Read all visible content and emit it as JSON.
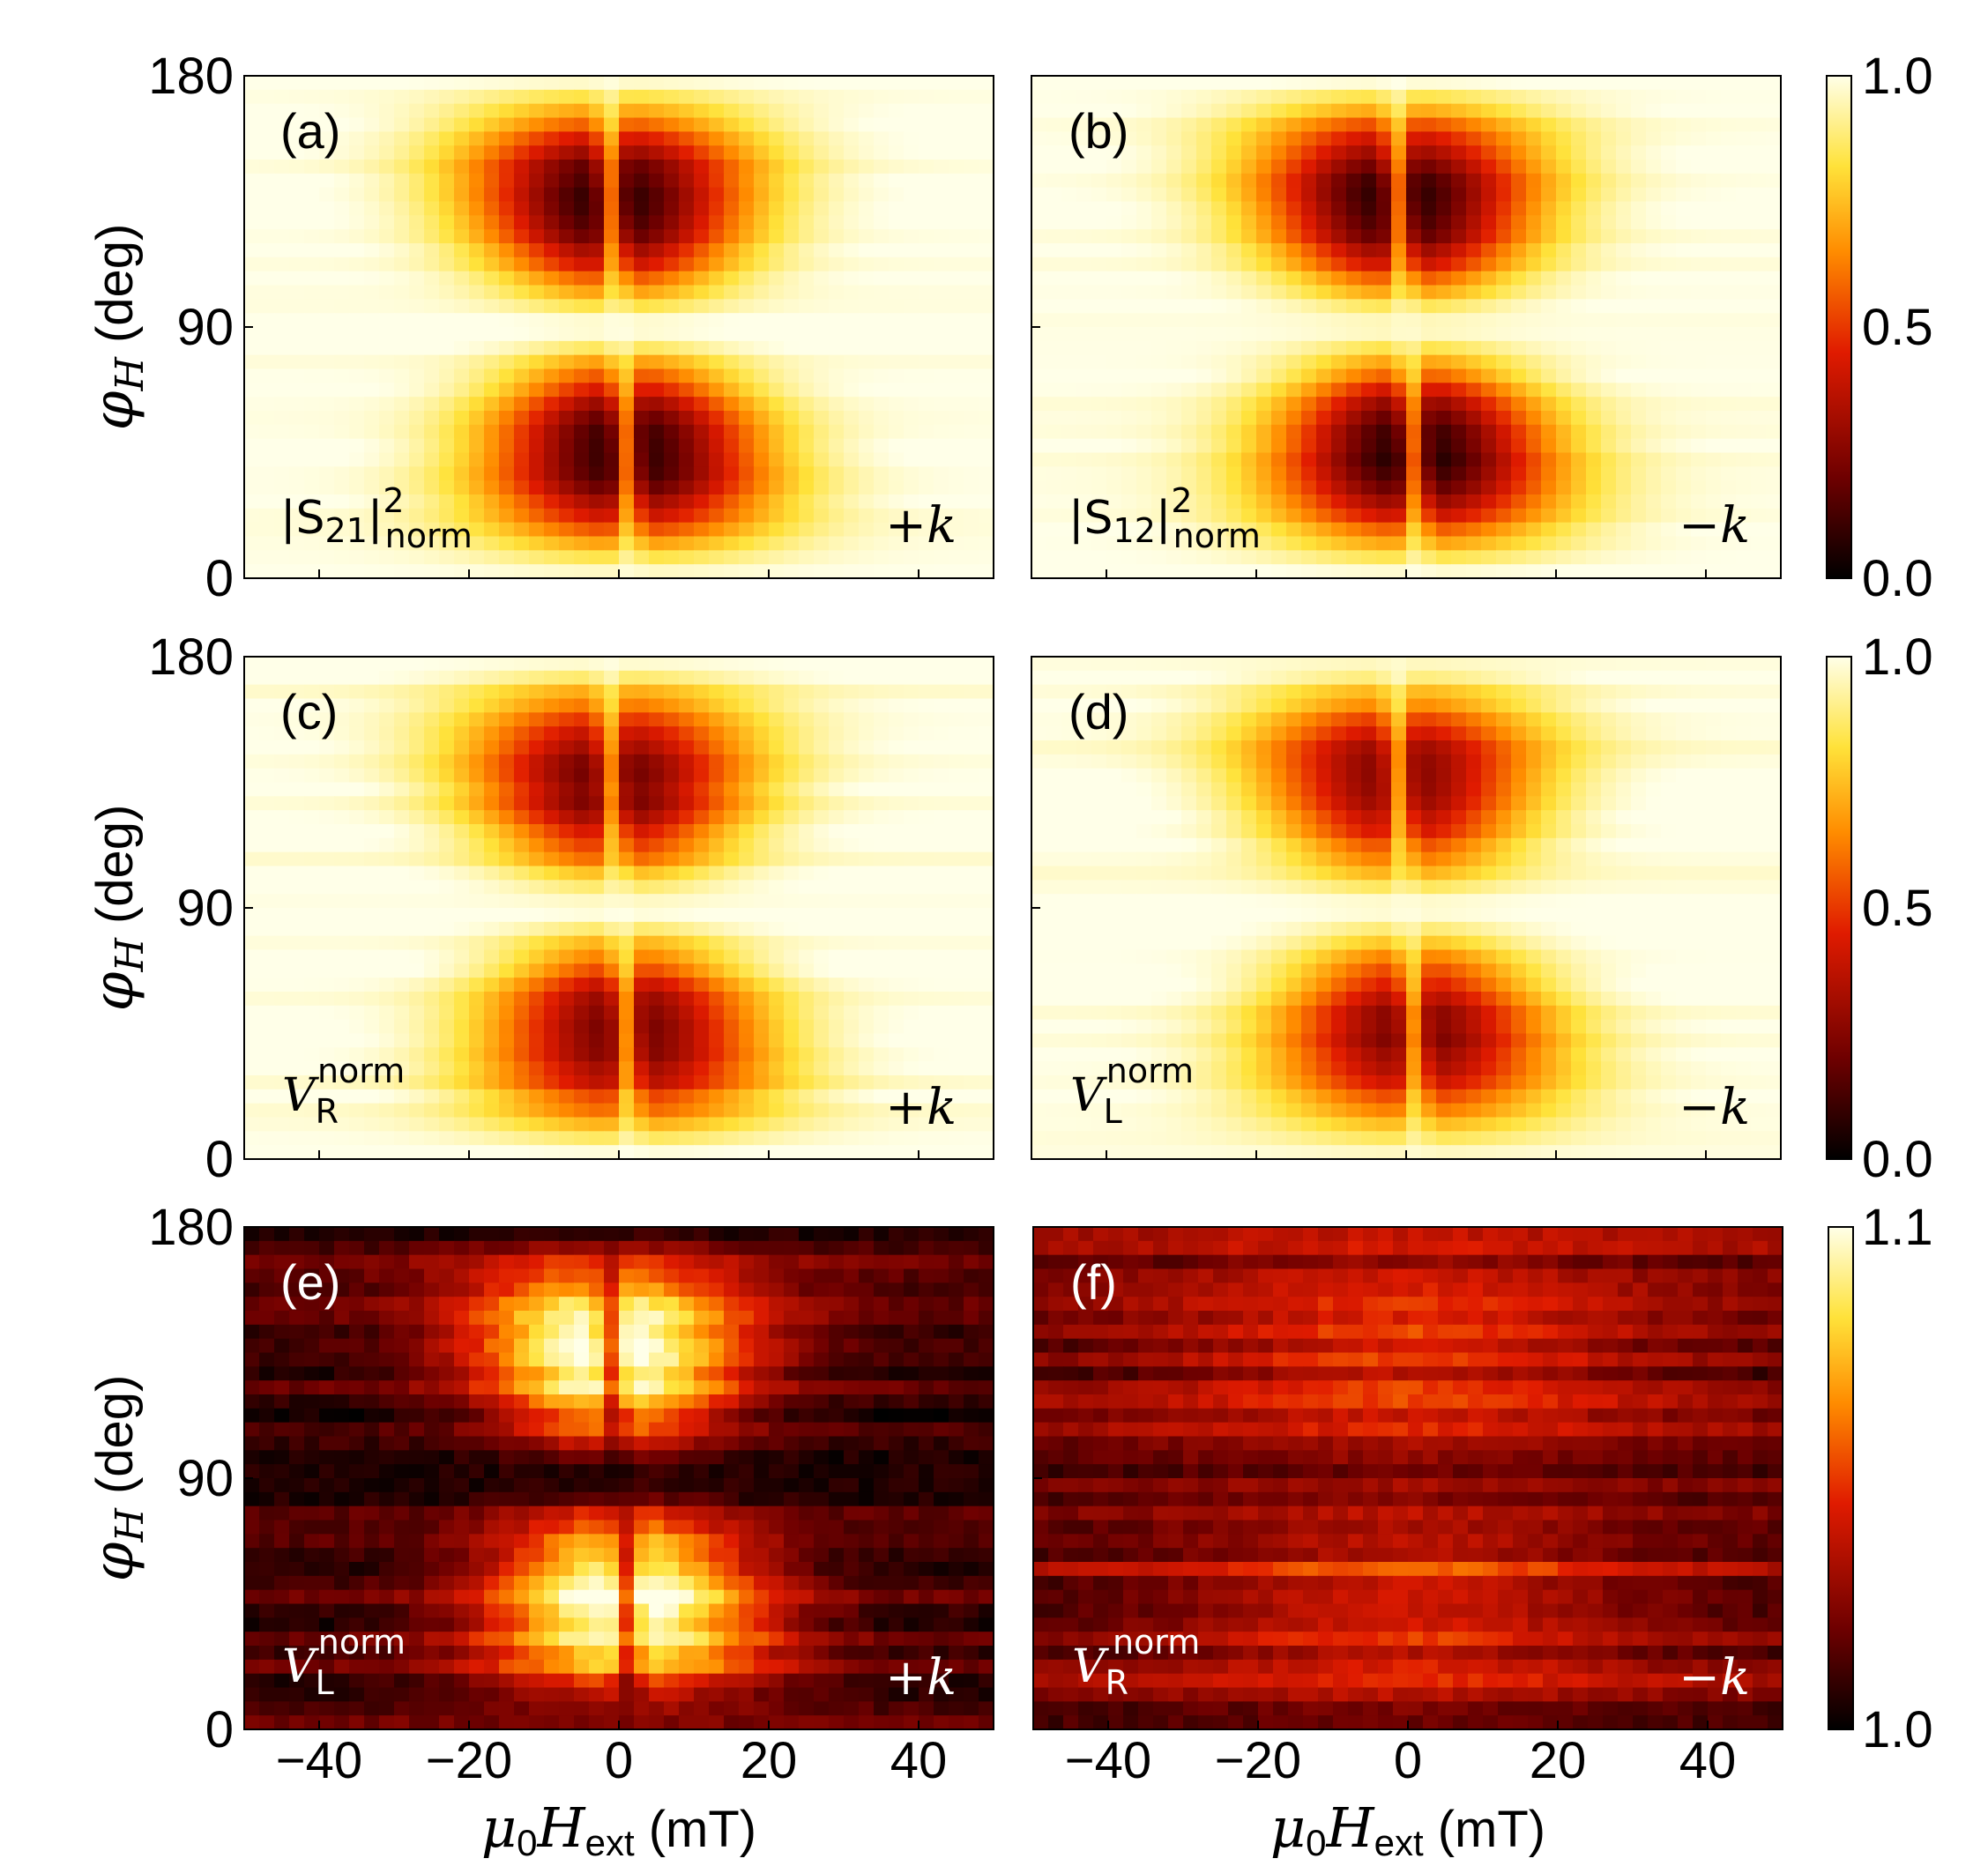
{
  "chart_data": [
    {
      "id": "a",
      "type": "heatmap",
      "panel_label": "(a)",
      "quantity": {
        "base": "|S",
        "sub": "21",
        "close": "|",
        "sup": "2",
        "sub2": "norm"
      },
      "direction": "+k",
      "contrast": 0.95,
      "noise": 0.04,
      "pattern": "dip",
      "xlim": [
        -50,
        50
      ],
      "ylim": [
        0,
        180
      ]
    },
    {
      "id": "b",
      "type": "heatmap",
      "panel_label": "(b)",
      "quantity": {
        "base": "|S",
        "sub": "12",
        "close": "|",
        "sup": "2",
        "sub2": "norm"
      },
      "direction": "−k",
      "contrast": 0.95,
      "noise": 0.04,
      "pattern": "dip",
      "xlim": [
        -50,
        50
      ],
      "ylim": [
        0,
        180
      ]
    },
    {
      "id": "c",
      "type": "heatmap",
      "panel_label": "(c)",
      "quantity": {
        "base": "V",
        "sub": "R",
        "sup": "norm"
      },
      "direction": "+k",
      "contrast": 0.82,
      "noise": 0.06,
      "pattern": "dip",
      "xlim": [
        -50,
        50
      ],
      "ylim": [
        0,
        180
      ]
    },
    {
      "id": "d",
      "type": "heatmap",
      "panel_label": "(d)",
      "quantity": {
        "base": "V",
        "sub": "L",
        "sup": "norm"
      },
      "direction": "−k",
      "contrast": 0.78,
      "noise": 0.06,
      "pattern": "dip",
      "xlim": [
        -50,
        50
      ],
      "ylim": [
        0,
        180
      ]
    },
    {
      "id": "e",
      "type": "heatmap",
      "panel_label": "(e)",
      "quantity": {
        "base": "V",
        "sub": "L",
        "sup": "norm"
      },
      "direction": "+k",
      "contrast": 0.9,
      "noise": 0.25,
      "pattern": "peak",
      "xlim": [
        -50,
        50
      ],
      "ylim": [
        0,
        180
      ]
    },
    {
      "id": "f",
      "type": "heatmap",
      "panel_label": "(f)",
      "quantity": {
        "base": "V",
        "sub": "R",
        "sup": "norm"
      },
      "direction": "−k",
      "contrast": 0.35,
      "noise": 0.22,
      "pattern": "weak",
      "xlim": [
        -50,
        50
      ],
      "ylim": [
        0,
        180
      ]
    }
  ],
  "axes": {
    "x_ticks": [
      "−40",
      "−20",
      "0",
      "20",
      "40"
    ],
    "x_tick_values": [
      -40,
      -20,
      0,
      20,
      40
    ],
    "y_ticks": [
      "0",
      "90",
      "180"
    ],
    "y_tick_values": [
      0,
      90,
      180
    ],
    "y_label": {
      "symbol": "φ",
      "sub": "H",
      "unit": " (deg)"
    },
    "x_label": {
      "mu": "μ",
      "mu_sub": "0",
      "H": "H",
      "H_sub": "ext",
      "unit": " (mT)"
    }
  },
  "colorbars": [
    {
      "ticks": [
        "1.0",
        "0.5",
        "0.0"
      ],
      "range": [
        0.0,
        1.0
      ]
    },
    {
      "ticks": [
        "1.0",
        "0.5",
        "0.0"
      ],
      "range": [
        0.0,
        1.0
      ]
    },
    {
      "ticks": [
        "1.1",
        "1.0"
      ],
      "range": [
        1.0,
        1.1
      ]
    }
  ],
  "colormap": [
    "#000000",
    "#6e0000",
    "#e01b00",
    "#ff8c00",
    "#ffe23a",
    "#ffffe8"
  ]
}
